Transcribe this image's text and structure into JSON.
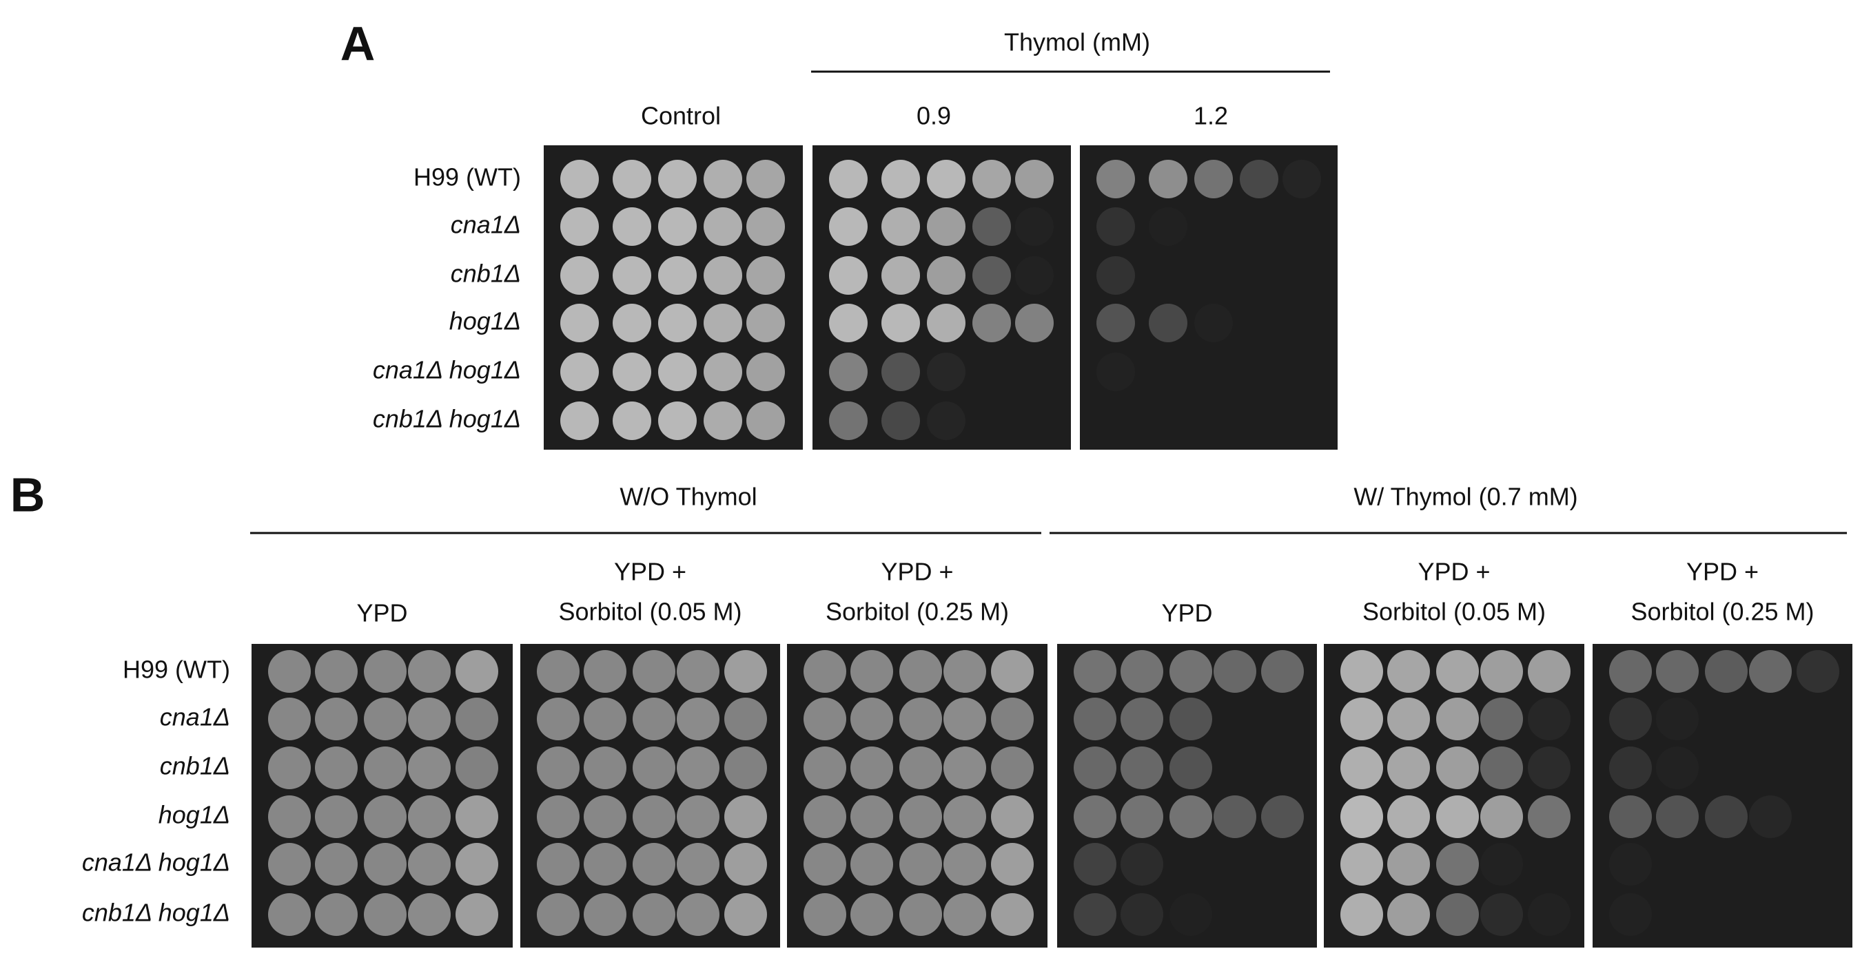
{
  "panel_a": {
    "label": "A",
    "group_header": "Thymol (mM)",
    "conditions": [
      "Control",
      "0.9",
      "1.2"
    ],
    "strains": [
      "H99 (WT)",
      "cna1Δ",
      "cnb1Δ",
      "hog1Δ",
      "cna1Δ hog1Δ",
      "cnb1Δ hog1Δ"
    ]
  },
  "panel_b": {
    "label": "B",
    "groups": [
      "W/O Thymol",
      "W/ Thymol (0.7 mM)"
    ],
    "conditions": [
      [
        "YPD"
      ],
      [
        "YPD +",
        "Sorbitol (0.05 M)"
      ],
      [
        "YPD +",
        "Sorbitol (0.25 M)"
      ],
      [
        "YPD"
      ],
      [
        "YPD +",
        "Sorbitol (0.05 M)"
      ],
      [
        "YPD +",
        "Sorbitol (0.25 M)"
      ]
    ],
    "strains": [
      "H99 (WT)",
      "cna1Δ",
      "cnb1Δ",
      "hog1Δ",
      "cna1Δ hog1Δ",
      "cnb1Δ hog1Δ"
    ]
  }
}
